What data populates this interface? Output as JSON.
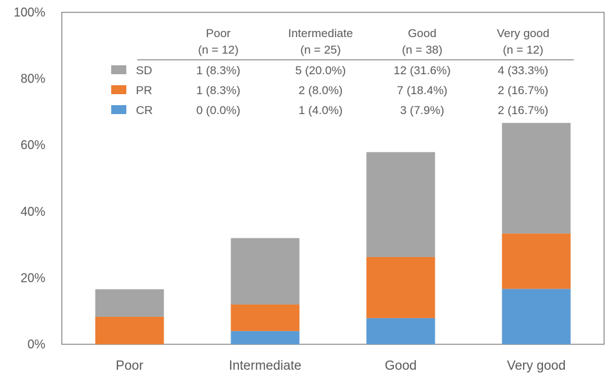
{
  "chart_data": {
    "type": "bar",
    "stacked": true,
    "categories": [
      "Poor",
      "Intermediate",
      "Good",
      "Very good"
    ],
    "series": [
      {
        "name": "CR",
        "color": "#5b9bd5",
        "values": [
          0.0,
          4.0,
          7.9,
          16.7
        ]
      },
      {
        "name": "PR",
        "color": "#ed7d31",
        "values": [
          8.3,
          8.0,
          18.4,
          16.7
        ]
      },
      {
        "name": "SD",
        "color": "#a5a5a5",
        "values": [
          8.3,
          20.0,
          31.6,
          33.3
        ]
      }
    ],
    "ylim": [
      0,
      100
    ],
    "yticks": [
      "0%",
      "20%",
      "40%",
      "60%",
      "80%",
      "100%"
    ],
    "ytick_values": [
      0,
      20,
      40,
      60,
      80,
      100
    ],
    "grid": false,
    "inset_table": {
      "columns": [
        {
          "name": "Poor",
          "n": "(n = 12)"
        },
        {
          "name": "Intermediate",
          "n": "(n = 25)"
        },
        {
          "name": "Good",
          "n": "(n = 38)"
        },
        {
          "name": "Very good",
          "n": "(n = 12)"
        }
      ],
      "rows": [
        {
          "label": "SD",
          "color": "#a5a5a5",
          "cells": [
            "1 (8.3%)",
            "5 (20.0%)",
            "12 (31.6%)",
            "4 (33.3%)"
          ]
        },
        {
          "label": "PR",
          "color": "#ed7d31",
          "cells": [
            "1 (8.3%)",
            "2 (8.0%)",
            "7 (18.4%)",
            "2 (16.7%)"
          ]
        },
        {
          "label": "CR",
          "color": "#5b9bd5",
          "cells": [
            "0 (0.0%)",
            "1 (4.0%)",
            "3 (7.9%)",
            "2 (16.7%)"
          ]
        }
      ]
    }
  }
}
